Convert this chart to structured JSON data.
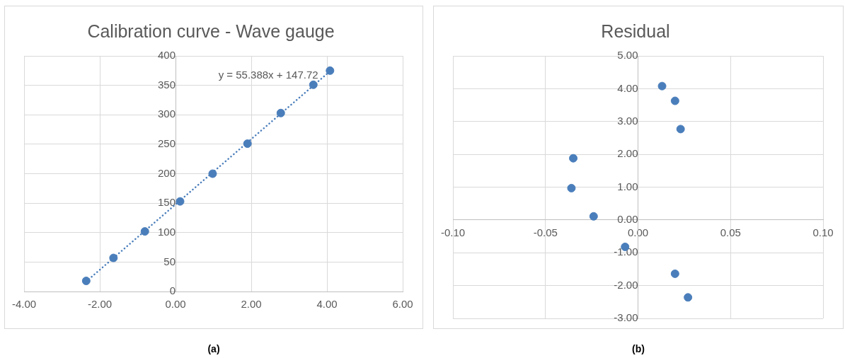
{
  "chart_data": [
    {
      "type": "scatter",
      "title": "Calibration curve - Wave gauge",
      "grid": true,
      "legend": false,
      "marker": "circle",
      "xlim": [
        -4,
        6
      ],
      "xticks": [
        {
          "value": -4,
          "label": "-4.00"
        },
        {
          "value": -2,
          "label": "-2.00"
        },
        {
          "value": 0,
          "label": "0.00"
        },
        {
          "value": 2,
          "label": "2.00"
        },
        {
          "value": 4,
          "label": "4.00"
        },
        {
          "value": 6,
          "label": "6.00"
        }
      ],
      "ylim": [
        0,
        400
      ],
      "yticks": [
        0,
        50,
        100,
        150,
        200,
        250,
        300,
        350,
        400
      ],
      "series": [
        {
          "color": "#4a7ebb",
          "x": [
            -2.36,
            -1.64,
            -0.81,
            0.12,
            0.98,
            1.9,
            2.78,
            3.64,
            4.08
          ],
          "values": [
            18,
            57,
            102,
            153,
            200,
            251,
            303,
            351,
            375
          ]
        },
        {
          "type": "line",
          "color": "#4a7ebb",
          "line_style": "dotted",
          "marker": "none",
          "x": [
            -2.36,
            4.08
          ],
          "values": [
            17,
            374
          ]
        }
      ],
      "annotations": [
        "y = 55.388x + 147.72",
        "(a)"
      ]
    },
    {
      "type": "scatter",
      "title": "Residual",
      "grid": true,
      "legend": false,
      "marker": "circle",
      "xlim": [
        -0.1,
        0.1
      ],
      "xticks": [
        {
          "value": -0.1,
          "label": "-0.10"
        },
        {
          "value": -0.05,
          "label": "-0.05"
        },
        {
          "value": 0,
          "label": "0.00"
        },
        {
          "value": 0.05,
          "label": "0.05"
        },
        {
          "value": 0.1,
          "label": "0.10"
        }
      ],
      "ylim": [
        -3,
        5
      ],
      "yticks": [
        {
          "value": -3,
          "label": "-3.00"
        },
        {
          "value": -2,
          "label": "-2.00"
        },
        {
          "value": -1,
          "label": "-1.00"
        },
        {
          "value": 0,
          "label": "0.00"
        },
        {
          "value": 1,
          "label": "1.00"
        },
        {
          "value": 2,
          "label": "2.00"
        },
        {
          "value": 3,
          "label": "3.00"
        },
        {
          "value": 4,
          "label": "4.00"
        },
        {
          "value": 5,
          "label": "5.00"
        }
      ],
      "series": [
        {
          "color": "#4a7ebb",
          "x": [
            0.013,
            0.02,
            0.023,
            -0.035,
            -0.036,
            -0.024,
            -0.007,
            0.02,
            0.027
          ],
          "values": [
            4.08,
            3.63,
            2.77,
            1.88,
            0.97,
            0.11,
            -0.82,
            -1.64,
            -2.36
          ]
        }
      ],
      "annotations": [
        "(b)"
      ]
    }
  ]
}
